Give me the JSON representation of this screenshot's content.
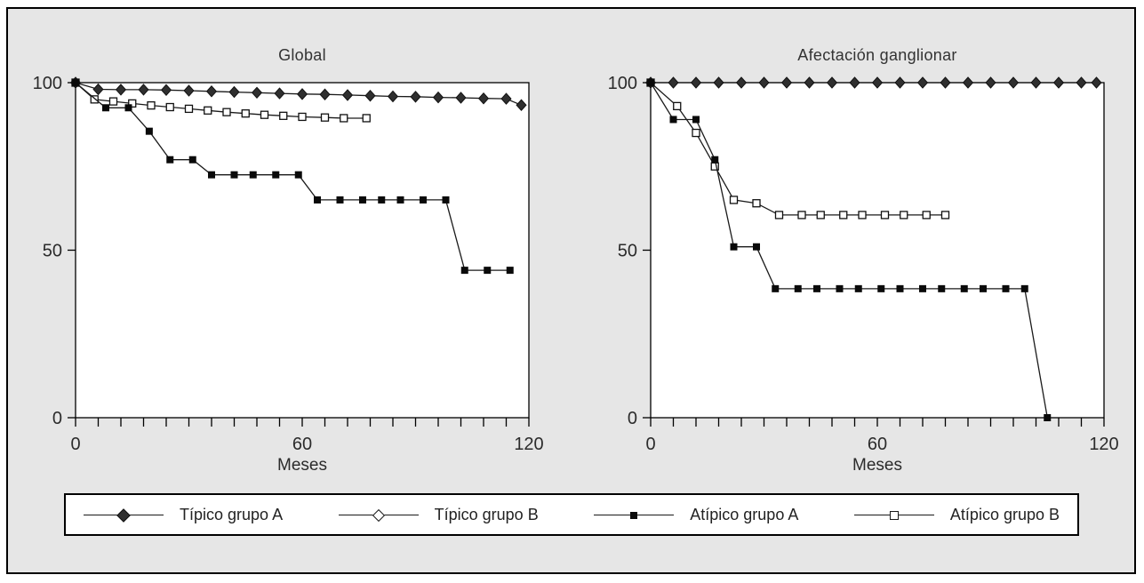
{
  "colors": {
    "figure_background": "#e6e6e6",
    "plot_background": "#ffffff",
    "line": "#1a1a1a",
    "text": "#2b2b2b",
    "border": "#000000",
    "diamond_fill": "#2f2f2f",
    "square_fill": "#0a0a0a"
  },
  "legend": {
    "items": [
      {
        "label": "Típico grupo A",
        "marker": "diamond-filled"
      },
      {
        "label": "Típico grupo B",
        "marker": "diamond-open"
      },
      {
        "label": "Atípico grupo A",
        "marker": "square-filled"
      },
      {
        "label": "Atípico grupo B",
        "marker": "square-open"
      }
    ]
  },
  "chart_data": [
    {
      "type": "line",
      "title": "Global",
      "xlabel": "Meses",
      "ylabel": "",
      "xlim": [
        0,
        120
      ],
      "ylim": [
        0,
        100
      ],
      "yticks": [
        100,
        50,
        0
      ],
      "xticks_labeled": [
        0,
        60,
        120
      ],
      "xtick_minor_step": 6,
      "grid": false,
      "legend_position": "bottom",
      "series": [
        {
          "name": "Típico grupo A",
          "marker": "diamond-filled",
          "points": [
            [
              0,
              100
            ],
            [
              6,
              98
            ],
            [
              12,
              97.9
            ],
            [
              18,
              97.9
            ],
            [
              24,
              97.8
            ],
            [
              30,
              97.6
            ],
            [
              36,
              97.4
            ],
            [
              42,
              97.2
            ],
            [
              48,
              97
            ],
            [
              54,
              96.8
            ],
            [
              60,
              96.6
            ],
            [
              66,
              96.5
            ],
            [
              72,
              96.3
            ],
            [
              78,
              96.1
            ],
            [
              84,
              95.9
            ],
            [
              90,
              95.8
            ],
            [
              96,
              95.6
            ],
            [
              102,
              95.5
            ],
            [
              108,
              95.3
            ],
            [
              114,
              95.2
            ],
            [
              118,
              93.3
            ]
          ]
        },
        {
          "name": "Atípico grupo B",
          "marker": "square-open",
          "points": [
            [
              0,
              100
            ],
            [
              5,
              95
            ],
            [
              10,
              94.4
            ],
            [
              15,
              93.8
            ],
            [
              20,
              93.2
            ],
            [
              25,
              92.7
            ],
            [
              30,
              92.2
            ],
            [
              35,
              91.7
            ],
            [
              40,
              91.2
            ],
            [
              45,
              90.8
            ],
            [
              50,
              90.4
            ],
            [
              55,
              90.1
            ],
            [
              60,
              89.8
            ],
            [
              66,
              89.6
            ],
            [
              71,
              89.4
            ],
            [
              77,
              89.4
            ]
          ]
        },
        {
          "name": "Atípico grupo A",
          "marker": "square-filled",
          "points": [
            [
              0,
              100
            ],
            [
              8,
              92.5
            ],
            [
              14,
              92.5
            ],
            [
              19.5,
              85.5
            ],
            [
              25,
              77
            ],
            [
              31,
              77
            ],
            [
              36,
              72.5
            ],
            [
              42,
              72.5
            ],
            [
              47,
              72.5
            ],
            [
              53,
              72.5
            ],
            [
              59,
              72.5
            ],
            [
              64,
              65
            ],
            [
              70,
              65
            ],
            [
              76,
              65
            ],
            [
              81,
              65
            ],
            [
              86,
              65
            ],
            [
              92,
              65
            ],
            [
              98,
              65
            ],
            [
              103,
              44
            ],
            [
              109,
              44
            ],
            [
              115,
              44
            ]
          ]
        }
      ]
    },
    {
      "type": "line",
      "title": "Afectación ganglionar",
      "xlabel": "Meses",
      "ylabel": "",
      "xlim": [
        0,
        120
      ],
      "ylim": [
        0,
        100
      ],
      "yticks": [
        100,
        50,
        0
      ],
      "xticks_labeled": [
        0,
        60,
        120
      ],
      "xtick_minor_step": 6,
      "grid": false,
      "legend_position": "bottom",
      "series": [
        {
          "name": "Típico grupo A",
          "marker": "diamond-filled",
          "points": [
            [
              0,
              100
            ],
            [
              6,
              100
            ],
            [
              12,
              100
            ],
            [
              18,
              100
            ],
            [
              24,
              100
            ],
            [
              30,
              100
            ],
            [
              36,
              100
            ],
            [
              42,
              100
            ],
            [
              48,
              100
            ],
            [
              54,
              100
            ],
            [
              60,
              100
            ],
            [
              66,
              100
            ],
            [
              72,
              100
            ],
            [
              78,
              100
            ],
            [
              84,
              100
            ],
            [
              90,
              100
            ],
            [
              96,
              100
            ],
            [
              102,
              100
            ],
            [
              108,
              100
            ],
            [
              114,
              100
            ],
            [
              118,
              100
            ]
          ]
        },
        {
          "name": "Atípico grupo B",
          "marker": "square-open",
          "points": [
            [
              0,
              100
            ],
            [
              7,
              93
            ],
            [
              12,
              85
            ],
            [
              17,
              75
            ],
            [
              22,
              65
            ],
            [
              28,
              64
            ],
            [
              34,
              60.5
            ],
            [
              40,
              60.5
            ],
            [
              45,
              60.5
            ],
            [
              51,
              60.5
            ],
            [
              56,
              60.5
            ],
            [
              62,
              60.5
            ],
            [
              67,
              60.5
            ],
            [
              73,
              60.5
            ],
            [
              78,
              60.5
            ]
          ]
        },
        {
          "name": "Atípico grupo A",
          "marker": "square-filled",
          "points": [
            [
              0,
              100
            ],
            [
              6,
              89
            ],
            [
              12,
              89
            ],
            [
              17,
              77
            ],
            [
              22,
              51
            ],
            [
              28,
              51
            ],
            [
              33,
              38.5
            ],
            [
              39,
              38.5
            ],
            [
              44,
              38.5
            ],
            [
              50,
              38.5
            ],
            [
              55,
              38.5
            ],
            [
              61,
              38.5
            ],
            [
              66,
              38.5
            ],
            [
              72,
              38.5
            ],
            [
              77,
              38.5
            ],
            [
              83,
              38.5
            ],
            [
              88,
              38.5
            ],
            [
              94,
              38.5
            ],
            [
              99,
              38.5
            ],
            [
              105,
              0
            ]
          ]
        }
      ]
    }
  ]
}
